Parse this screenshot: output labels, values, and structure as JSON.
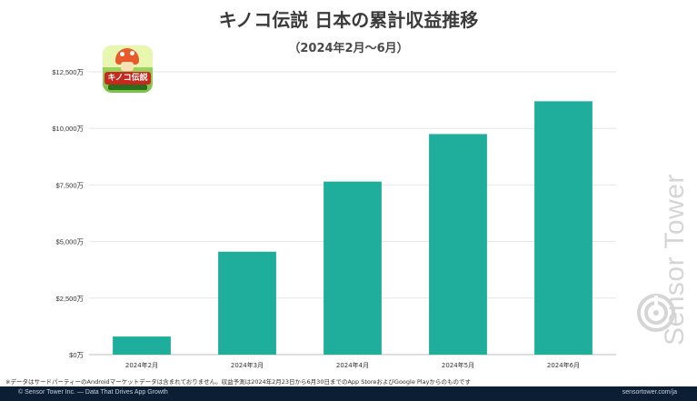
{
  "title": "キノコ伝説 日本の累計収益推移",
  "subtitle": "（2024年2月〜6月）",
  "chart_data": {
    "type": "bar",
    "title": "キノコ伝説 日本の累計収益推移",
    "subtitle": "（2024年2月〜6月）",
    "categories": [
      "2024年2月",
      "2024年3月",
      "2024年4月",
      "2024年5月",
      "2024年6月"
    ],
    "values": [
      800,
      4550,
      7650,
      9750,
      11200
    ],
    "ylim": [
      0,
      12500
    ],
    "y_ticks": [
      0,
      2500,
      5000,
      7500,
      10000,
      12500
    ],
    "y_tick_labels": [
      "$0万",
      "$2,500万",
      "$5,000万",
      "$7,500万",
      "$10,000万",
      "$12,500万"
    ],
    "grid": true,
    "bar_color": "#1fae9b"
  },
  "app_icon": {
    "label": "キノコ伝説"
  },
  "brand": {
    "name": "Sensor Tower"
  },
  "footnote": "※データはサードパーティーのAndroidマーケットデータは含まれておりません。収益予測は2024年2月23日から6月30日までのApp StoreおよびGoogle Playからのものです",
  "footer": {
    "left": "© Sensor Tower Inc. — Data That Drives App Growth",
    "right": "sensortower.com/ja"
  }
}
